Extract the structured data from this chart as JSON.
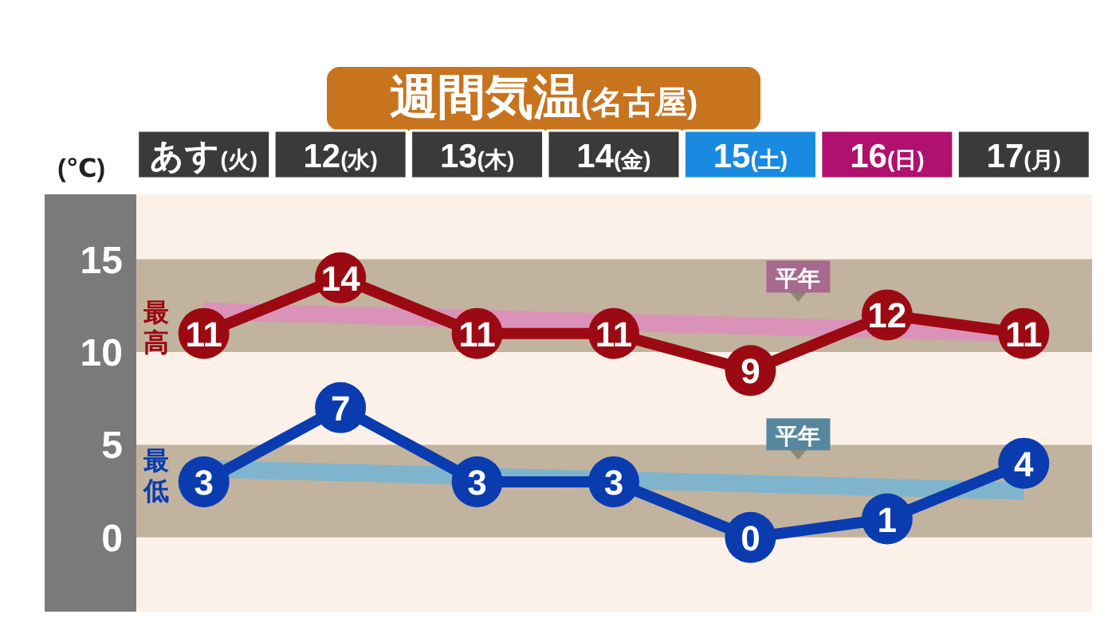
{
  "chart_data": {
    "type": "line",
    "title": "週間気温(名古屋)",
    "ylabel": "(℃)",
    "categories": [
      "あす(火)",
      "12(水)",
      "13(木)",
      "14(金)",
      "15(土)",
      "16(日)",
      "17(月)"
    ],
    "ylim": [
      -4,
      18.5
    ],
    "yticks": [
      0,
      5,
      10,
      15
    ],
    "bands": [
      {
        "axis": "y",
        "from": 10,
        "to": 15,
        "color": "#c2b39f"
      },
      {
        "axis": "y",
        "from": 0,
        "to": 5,
        "color": "#c2b39f"
      }
    ],
    "series": [
      {
        "name": "平年",
        "color": "#df8cbc",
        "marker": "none",
        "values": [
          12.2,
          12.0,
          11.8,
          11.6,
          11.4,
          11.2,
          11.0
        ]
      },
      {
        "name": "平年",
        "color": "#74b4d4",
        "marker": "none",
        "values": [
          3.7,
          3.5,
          3.3,
          3.1,
          2.9,
          2.7,
          2.5
        ]
      },
      {
        "name": "最高",
        "color": "#9b0a12",
        "marker": "circle",
        "values": [
          11,
          14,
          11,
          11,
          9,
          12,
          11
        ],
        "value_labels": [
          "11",
          "14",
          "11",
          "11",
          "9",
          "12",
          "11"
        ]
      },
      {
        "name": "最低",
        "color": "#0a3cb0",
        "marker": "circle",
        "values": [
          3,
          7,
          3,
          3,
          0,
          1,
          4
        ],
        "value_labels": [
          "3",
          "7",
          "3",
          "3",
          "0",
          "1",
          "4"
        ]
      }
    ]
  }
}
